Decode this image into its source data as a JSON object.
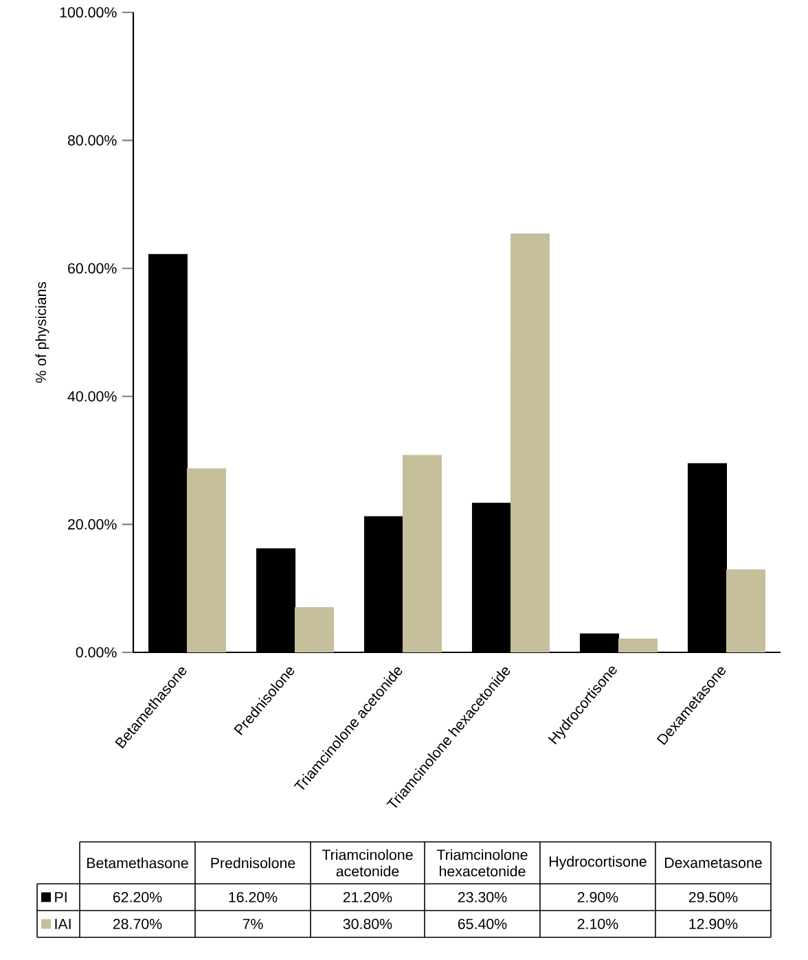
{
  "chart_data": {
    "type": "bar",
    "ylabel": "% of physicians",
    "categories": [
      "Betamethasone",
      "Prednisolone",
      "Triamcinolone acetonide",
      "Triamcinolone hexacetonide",
      "Hydrocortisone",
      "Dexametasone"
    ],
    "series": [
      {
        "name": "PI",
        "color": "#000000",
        "values": [
          62.2,
          16.2,
          21.2,
          23.3,
          2.9,
          29.5
        ],
        "value_labels": [
          "62.20%",
          "16.20%",
          "21.20%",
          "23.30%",
          "2.90%",
          "29.50%"
        ]
      },
      {
        "name": "IAI",
        "color": "#c5bf9b",
        "values": [
          28.7,
          7,
          30.8,
          65.4,
          2.1,
          12.9
        ],
        "value_labels": [
          "28.70%",
          "7%",
          "30.80%",
          "65.40%",
          "2.10%",
          "12.90%"
        ]
      }
    ],
    "ylim": [
      0,
      100
    ],
    "yticks": [
      {
        "value": 0,
        "label": "0.00%"
      },
      {
        "value": 20,
        "label": "20.00%"
      },
      {
        "value": 40,
        "label": "40.00%"
      },
      {
        "value": 60,
        "label": "60.00%"
      },
      {
        "value": 80,
        "label": "80.00%"
      },
      {
        "value": 100,
        "label": "100.00%"
      }
    ],
    "legend": "bottom"
  }
}
